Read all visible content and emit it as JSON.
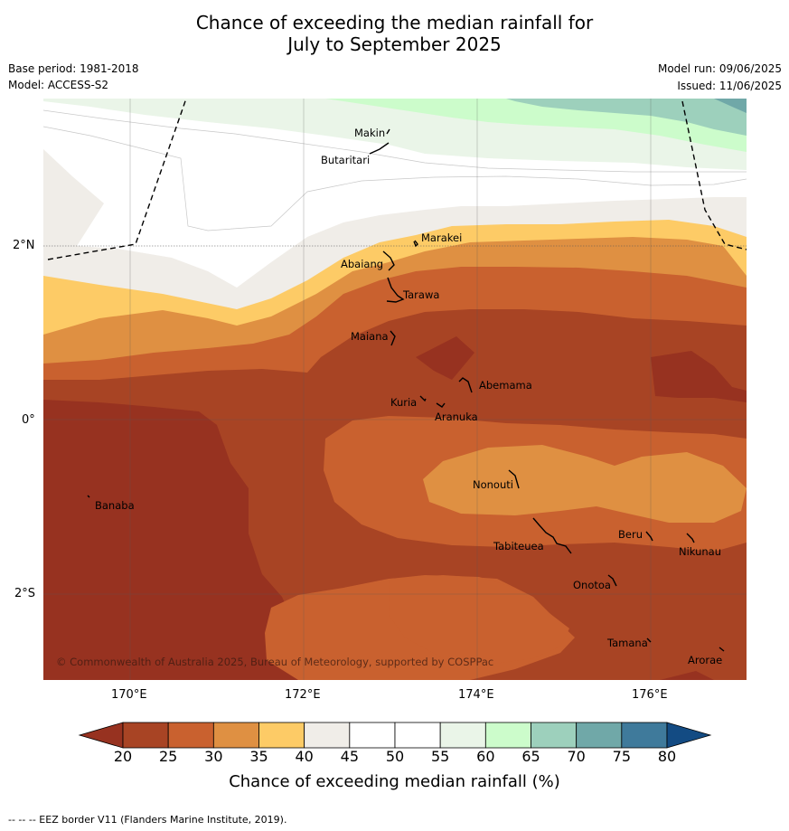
{
  "title_line1": "Chance of exceeding the median rainfall for",
  "title_line2": "July to September 2025",
  "meta": {
    "base_period": "Base period: 1981-2018",
    "model": "Model: ACCESS-S2",
    "model_run": "Model run: 09/06/2025",
    "issued": "Issued: 11/06/2025"
  },
  "axes": {
    "lon_ticks": [
      "170°E",
      "172°E",
      "174°E",
      "176°E"
    ],
    "lat_ticks": [
      "2°N",
      "0°",
      "2°S"
    ]
  },
  "places": {
    "makin": "Makin",
    "butaritari": "Butaritari",
    "marakei": "Marakei",
    "abaiang": "Abaiang",
    "tarawa": "Tarawa",
    "maiana": "Maiana",
    "abemama": "Abemama",
    "kuria": "Kuria",
    "aranuka": "Aranuka",
    "nonouti": "Nonouti",
    "banaba": "Banaba",
    "beru": "Beru",
    "tabiteuea": "Tabiteuea",
    "nikunau": "Nikunau",
    "onotoa": "Onotoa",
    "tamana": "Tamana",
    "arorae": "Arorae"
  },
  "copyright": "© Commonwealth of Australia 2025, Bureau of Meteorology, supported by COSPPac",
  "colorbar": {
    "labels": [
      "20",
      "25",
      "30",
      "35",
      "40",
      "45",
      "50",
      "55",
      "60",
      "65",
      "70",
      "75",
      "80"
    ],
    "colors": [
      "#a84424",
      "#c9612f",
      "#df9042",
      "#fdcb66",
      "#f0ede8",
      "#ffffff",
      "#ffffff",
      "#eaf5e8",
      "#ccfccb",
      "#9dd0bc",
      "#70a8a8",
      "#3f7a9b"
    ],
    "low_color": "#973220",
    "high_color": "#134b83",
    "title": "Chance of exceeding median rainfall (%)"
  },
  "footnote": "--  --  -- EEZ border V11 (Flanders Marine Institute, 2019)."
}
